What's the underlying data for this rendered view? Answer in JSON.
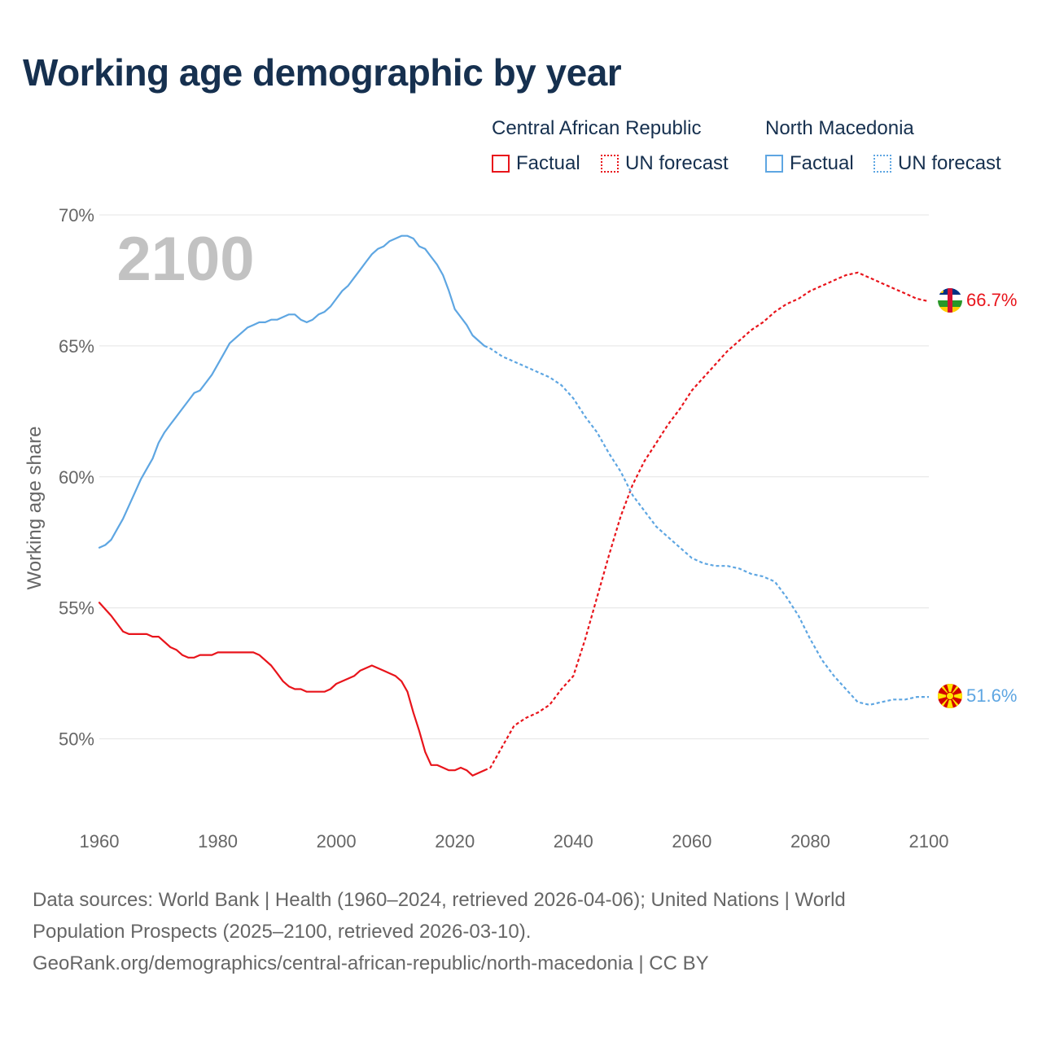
{
  "title": "Working age demographic by year",
  "legend": {
    "groups": [
      {
        "label": "Central African Republic",
        "factual": "Factual",
        "forecast": "UN forecast",
        "color": "#e8141b"
      },
      {
        "label": "North Macedonia",
        "factual": "Factual",
        "forecast": "UN forecast",
        "color": "#5ea6e2"
      }
    ]
  },
  "year_overlay": "2100",
  "end_labels": {
    "car": "66.7%",
    "mk": "51.6%"
  },
  "icons": {
    "car": "central-african-republic-flag-icon",
    "mk": "north-macedonia-flag-icon"
  },
  "footer": {
    "line1": "Data sources: World Bank | Health (1960–2024, retrieved 2026-04-06); United Nations | World",
    "line2": "Population Prospects (2025–2100, retrieved 2026-03-10).",
    "line3": "GeoRank.org/demographics/central-african-republic/north-macedonia | CC BY"
  },
  "chart_data": {
    "type": "line",
    "title": "Working age demographic by year",
    "xlabel": "",
    "ylabel": "Working age share",
    "xlim": [
      1960,
      2100
    ],
    "ylim": [
      47,
      70
    ],
    "x_ticks": [
      1960,
      1980,
      2000,
      2020,
      2040,
      2060,
      2080,
      2100
    ],
    "x_tick_labels": [
      "1960",
      "1980",
      "2000",
      "2020",
      "2040",
      "2060",
      "2080",
      "2100"
    ],
    "y_ticks": [
      50,
      55,
      60,
      65,
      70
    ],
    "y_tick_labels": [
      "50%",
      "55%",
      "60%",
      "65%",
      "70%"
    ],
    "grid": true,
    "factual_end_year": 2025,
    "series": [
      {
        "name": "Central African Republic",
        "color": "#e8141b",
        "points": [
          [
            1960,
            55.2
          ],
          [
            1962,
            54.7
          ],
          [
            1963,
            54.4
          ],
          [
            1964,
            54.1
          ],
          [
            1965,
            54.0
          ],
          [
            1968,
            54.0
          ],
          [
            1969,
            53.9
          ],
          [
            1970,
            53.9
          ],
          [
            1972,
            53.5
          ],
          [
            1973,
            53.4
          ],
          [
            1974,
            53.2
          ],
          [
            1975,
            53.1
          ],
          [
            1976,
            53.1
          ],
          [
            1977,
            53.2
          ],
          [
            1979,
            53.2
          ],
          [
            1980,
            53.3
          ],
          [
            1986,
            53.3
          ],
          [
            1987,
            53.2
          ],
          [
            1989,
            52.8
          ],
          [
            1990,
            52.5
          ],
          [
            1991,
            52.2
          ],
          [
            1992,
            52.0
          ],
          [
            1993,
            51.9
          ],
          [
            1994,
            51.9
          ],
          [
            1995,
            51.8
          ],
          [
            1998,
            51.8
          ],
          [
            1999,
            51.9
          ],
          [
            2000,
            52.1
          ],
          [
            2003,
            52.4
          ],
          [
            2004,
            52.6
          ],
          [
            2006,
            52.8
          ],
          [
            2008,
            52.6
          ],
          [
            2009,
            52.5
          ],
          [
            2010,
            52.4
          ],
          [
            2011,
            52.2
          ],
          [
            2012,
            51.8
          ],
          [
            2013,
            51.0
          ],
          [
            2014,
            50.3
          ],
          [
            2015,
            49.5
          ],
          [
            2016,
            49.0
          ],
          [
            2017,
            49.0
          ],
          [
            2018,
            48.9
          ],
          [
            2019,
            48.8
          ],
          [
            2020,
            48.8
          ],
          [
            2021,
            48.9
          ],
          [
            2022,
            48.8
          ],
          [
            2023,
            48.6
          ],
          [
            2025,
            48.8
          ],
          [
            2026,
            48.9
          ],
          [
            2028,
            49.7
          ],
          [
            2030,
            50.5
          ],
          [
            2032,
            50.8
          ],
          [
            2034,
            51.0
          ],
          [
            2036,
            51.3
          ],
          [
            2038,
            51.9
          ],
          [
            2040,
            52.4
          ],
          [
            2042,
            53.8
          ],
          [
            2044,
            55.4
          ],
          [
            2046,
            57.0
          ],
          [
            2048,
            58.5
          ],
          [
            2050,
            59.7
          ],
          [
            2052,
            60.6
          ],
          [
            2054,
            61.3
          ],
          [
            2056,
            62.0
          ],
          [
            2058,
            62.6
          ],
          [
            2060,
            63.3
          ],
          [
            2062,
            63.8
          ],
          [
            2064,
            64.3
          ],
          [
            2066,
            64.8
          ],
          [
            2068,
            65.2
          ],
          [
            2070,
            65.6
          ],
          [
            2072,
            65.9
          ],
          [
            2074,
            66.3
          ],
          [
            2076,
            66.6
          ],
          [
            2078,
            66.8
          ],
          [
            2080,
            67.1
          ],
          [
            2082,
            67.3
          ],
          [
            2084,
            67.5
          ],
          [
            2086,
            67.7
          ],
          [
            2088,
            67.8
          ],
          [
            2090,
            67.6
          ],
          [
            2092,
            67.4
          ],
          [
            2094,
            67.2
          ],
          [
            2096,
            67.0
          ],
          [
            2098,
            66.8
          ],
          [
            2100,
            66.7
          ]
        ]
      },
      {
        "name": "North Macedonia",
        "color": "#5ea6e2",
        "points": [
          [
            1960,
            57.3
          ],
          [
            1961,
            57.4
          ],
          [
            1962,
            57.6
          ],
          [
            1963,
            58.0
          ],
          [
            1964,
            58.4
          ],
          [
            1965,
            58.9
          ],
          [
            1966,
            59.4
          ],
          [
            1967,
            59.9
          ],
          [
            1968,
            60.3
          ],
          [
            1969,
            60.7
          ],
          [
            1970,
            61.3
          ],
          [
            1971,
            61.7
          ],
          [
            1972,
            62.0
          ],
          [
            1973,
            62.3
          ],
          [
            1974,
            62.6
          ],
          [
            1975,
            62.9
          ],
          [
            1976,
            63.2
          ],
          [
            1977,
            63.3
          ],
          [
            1978,
            63.6
          ],
          [
            1979,
            63.9
          ],
          [
            1980,
            64.3
          ],
          [
            1981,
            64.7
          ],
          [
            1982,
            65.1
          ],
          [
            1983,
            65.3
          ],
          [
            1984,
            65.5
          ],
          [
            1985,
            65.7
          ],
          [
            1986,
            65.8
          ],
          [
            1987,
            65.9
          ],
          [
            1988,
            65.9
          ],
          [
            1989,
            66.0
          ],
          [
            1990,
            66.0
          ],
          [
            1991,
            66.1
          ],
          [
            1992,
            66.2
          ],
          [
            1993,
            66.2
          ],
          [
            1994,
            66.0
          ],
          [
            1995,
            65.9
          ],
          [
            1996,
            66.0
          ],
          [
            1997,
            66.2
          ],
          [
            1998,
            66.3
          ],
          [
            1999,
            66.5
          ],
          [
            2000,
            66.8
          ],
          [
            2001,
            67.1
          ],
          [
            2002,
            67.3
          ],
          [
            2003,
            67.6
          ],
          [
            2004,
            67.9
          ],
          [
            2005,
            68.2
          ],
          [
            2006,
            68.5
          ],
          [
            2007,
            68.7
          ],
          [
            2008,
            68.8
          ],
          [
            2009,
            69.0
          ],
          [
            2010,
            69.1
          ],
          [
            2011,
            69.2
          ],
          [
            2012,
            69.2
          ],
          [
            2013,
            69.1
          ],
          [
            2014,
            68.8
          ],
          [
            2015,
            68.7
          ],
          [
            2016,
            68.4
          ],
          [
            2017,
            68.1
          ],
          [
            2018,
            67.7
          ],
          [
            2019,
            67.1
          ],
          [
            2020,
            66.4
          ],
          [
            2021,
            66.1
          ],
          [
            2022,
            65.8
          ],
          [
            2023,
            65.4
          ],
          [
            2024,
            65.2
          ],
          [
            2025,
            65.0
          ],
          [
            2026,
            64.9
          ],
          [
            2028,
            64.6
          ],
          [
            2030,
            64.4
          ],
          [
            2032,
            64.2
          ],
          [
            2034,
            64.0
          ],
          [
            2036,
            63.8
          ],
          [
            2038,
            63.5
          ],
          [
            2040,
            63.0
          ],
          [
            2042,
            62.3
          ],
          [
            2044,
            61.7
          ],
          [
            2046,
            60.9
          ],
          [
            2048,
            60.2
          ],
          [
            2050,
            59.3
          ],
          [
            2052,
            58.7
          ],
          [
            2054,
            58.1
          ],
          [
            2056,
            57.7
          ],
          [
            2058,
            57.3
          ],
          [
            2060,
            56.9
          ],
          [
            2062,
            56.7
          ],
          [
            2064,
            56.6
          ],
          [
            2066,
            56.6
          ],
          [
            2068,
            56.5
          ],
          [
            2070,
            56.3
          ],
          [
            2072,
            56.2
          ],
          [
            2074,
            56.0
          ],
          [
            2076,
            55.4
          ],
          [
            2078,
            54.7
          ],
          [
            2080,
            53.8
          ],
          [
            2082,
            53.0
          ],
          [
            2084,
            52.4
          ],
          [
            2086,
            51.9
          ],
          [
            2088,
            51.4
          ],
          [
            2090,
            51.3
          ],
          [
            2092,
            51.4
          ],
          [
            2094,
            51.5
          ],
          [
            2096,
            51.5
          ],
          [
            2098,
            51.6
          ],
          [
            2100,
            51.6
          ]
        ]
      }
    ],
    "annotations": [
      "2100"
    ]
  }
}
